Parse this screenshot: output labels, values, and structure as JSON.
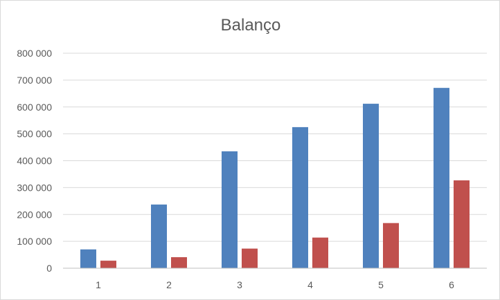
{
  "chart_data": {
    "type": "bar",
    "title": "Balanço",
    "xlabel": "",
    "ylabel": "",
    "categories": [
      "1",
      "2",
      "3",
      "4",
      "5",
      "6"
    ],
    "series": [
      {
        "color": "#4f81bd",
        "values": [
          70000,
          237000,
          435000,
          525000,
          612000,
          671000
        ]
      },
      {
        "color": "#c0504d",
        "values": [
          28000,
          41000,
          73000,
          114000,
          168000,
          327000
        ]
      }
    ],
    "ylim": [
      0,
      800000
    ],
    "yticks": [
      0,
      100000,
      200000,
      300000,
      400000,
      500000,
      600000,
      700000,
      800000
    ],
    "ytick_labels": [
      "0",
      "100 000",
      "200 000",
      "300 000",
      "400 000",
      "500 000",
      "600 000",
      "700 000",
      "800 000"
    ],
    "grid": true,
    "legend": "none"
  }
}
